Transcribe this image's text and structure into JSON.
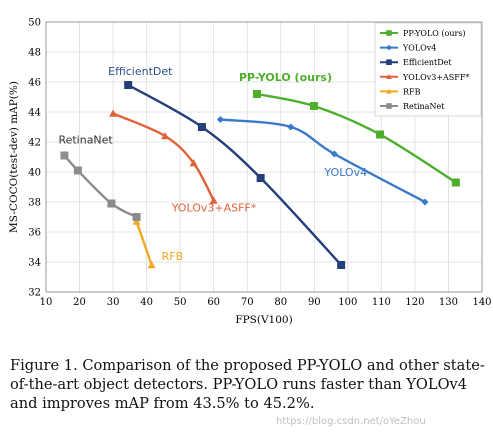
{
  "chart_data": {
    "type": "line",
    "xlabel": "FPS(V100)",
    "ylabel": "MS-COCO(test-dev) mAP(%)",
    "xlim": [
      10,
      140
    ],
    "ylim": [
      32,
      50
    ],
    "xticks": [
      10,
      20,
      30,
      40,
      50,
      60,
      70,
      80,
      90,
      100,
      110,
      120,
      130,
      140
    ],
    "yticks": [
      32,
      34,
      36,
      38,
      40,
      42,
      44,
      46,
      48,
      50
    ],
    "grid": true,
    "legend_position": "top-right",
    "series": [
      {
        "name": "PP-YOLO (ours)",
        "color": "#4daf2c",
        "marker": "square",
        "label": "PP-YOLO (ours)",
        "label_color": "#4daf2c",
        "label_bold": true,
        "x": [
          72.9,
          89.9,
          109.6,
          132.2
        ],
        "y": [
          45.2,
          44.4,
          42.5,
          39.3
        ]
      },
      {
        "name": "YOLOv4",
        "color": "#3a78c8",
        "marker": "diamond",
        "label": "YOLOv4",
        "label_color": "#3a78c8",
        "x": [
          62,
          83,
          96,
          123
        ],
        "y": [
          43.5,
          43.0,
          41.2,
          38.0
        ]
      },
      {
        "name": "EfficientDet",
        "color": "#243f7a",
        "marker": "square",
        "label": "EfficientDet",
        "label_color": "#2f4f8f",
        "x": [
          34.5,
          56.5,
          74,
          98
        ],
        "y": [
          45.8,
          43.0,
          39.6,
          33.8
        ]
      },
      {
        "name": "YOLOv3+ASFF*",
        "color": "#e0623a",
        "marker": "triangle",
        "label": "YOLOv3+ASFF*",
        "label_color": "#e0623a",
        "x": [
          30,
          45.5,
          54,
          60
        ],
        "y": [
          43.9,
          42.4,
          40.6,
          38.1
        ]
      },
      {
        "name": "RFB",
        "color": "#f2a922",
        "marker": "triangle",
        "label": "RFB",
        "label_color": "#f2a922",
        "x": [
          37,
          41.5
        ],
        "y": [
          36.7,
          33.8
        ]
      },
      {
        "name": "RetinaNet",
        "color": "#8c8c8c",
        "marker": "square",
        "label": "RetinaNet",
        "label_color": "#333333",
        "x": [
          15.5,
          19.5,
          29.5,
          37
        ],
        "y": [
          41.1,
          40.1,
          37.9,
          37.0
        ]
      }
    ]
  },
  "caption": "Figure 1. Comparison of the proposed PP-YOLO and other state-of-the-art object detectors. PP-YOLO runs faster than YOLOv4 and improves mAP from 43.5% to 45.2%.",
  "watermark": "https://blog.csdn.net/oYeZhou"
}
